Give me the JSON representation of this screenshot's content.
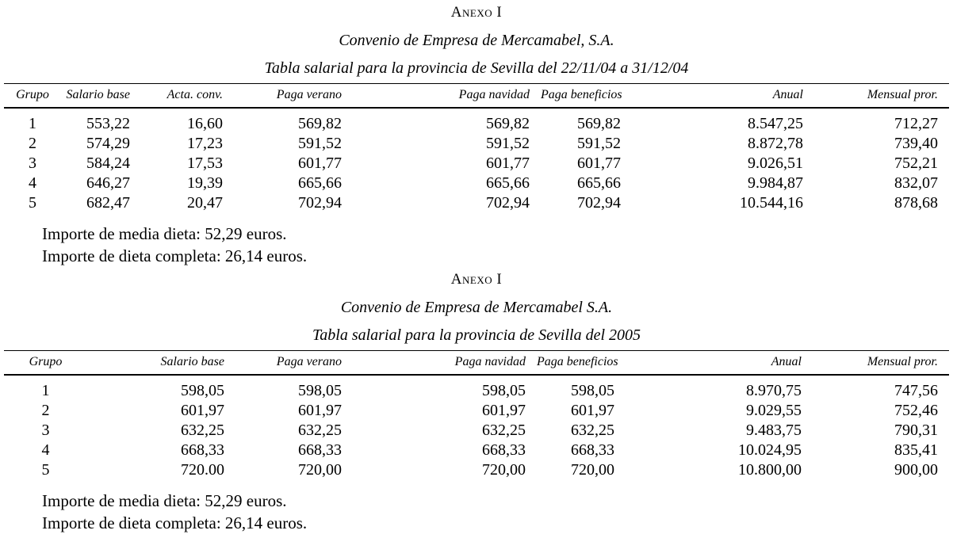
{
  "page": {
    "background_color": "#ffffff",
    "text_color": "#000000"
  },
  "sections": [
    {
      "annex_title": "Anexo I",
      "subtitle": "Convenio de Empresa de Mercamabel, S.A.",
      "table_title": "Tabla salarial para la provincia de Sevilla del 22/11/04 a 31/12/04",
      "columns": [
        "Grupo",
        "Salario base",
        "Acta. conv.",
        "Paga verano",
        "Paga navidad",
        "Paga beneficios",
        "Anual",
        "Mensual pror."
      ],
      "rows": [
        [
          "1",
          "553,22",
          "16,60",
          "569,82",
          "569,82",
          "569,82",
          "8.547,25",
          "712,27"
        ],
        [
          "2",
          "574,29",
          "17,23",
          "591,52",
          "591,52",
          "591,52",
          "8.872,78",
          "739,40"
        ],
        [
          "3",
          "584,24",
          "17,53",
          "601,77",
          "601,77",
          "601,77",
          "9.026,51",
          "752,21"
        ],
        [
          "4",
          "646,27",
          "19,39",
          "665,66",
          "665,66",
          "665,66",
          "9.984,87",
          "832,07"
        ],
        [
          "5",
          "682,47",
          "20,47",
          "702,94",
          "702,94",
          "702,94",
          "10.544,16",
          "878,68"
        ]
      ],
      "notes": [
        "Importe de media dieta: 52,29 euros.",
        "Importe de dieta completa: 26,14 euros."
      ]
    },
    {
      "annex_title": "Anexo I",
      "subtitle": "Convenio de Empresa de Mercamabel S.A.",
      "table_title": "Tabla salarial para la provincia de Sevilla del 2005",
      "columns": [
        "Grupo",
        "Salario base",
        "Paga verano",
        "Paga navidad",
        "Paga beneficios",
        "Anual",
        "Mensual pror."
      ],
      "rows": [
        [
          "1",
          "598,05",
          "598,05",
          "598,05",
          "598,05",
          "8.970,75",
          "747,56"
        ],
        [
          "2",
          "601,97",
          "601,97",
          "601,97",
          "601,97",
          "9.029,55",
          "752,46"
        ],
        [
          "3",
          "632,25",
          "632,25",
          "632,25",
          "632,25",
          "9.483,75",
          "790,31"
        ],
        [
          "4",
          "668,33",
          "668,33",
          "668,33",
          "668,33",
          "10.024,95",
          "835,41"
        ],
        [
          "5",
          "720.00",
          "720,00",
          "720,00",
          "720,00",
          "10.800,00",
          "900,00"
        ]
      ],
      "notes": [
        "Importe de media dieta: 52,29 euros.",
        "Importe de dieta completa: 26,14 euros."
      ]
    }
  ]
}
